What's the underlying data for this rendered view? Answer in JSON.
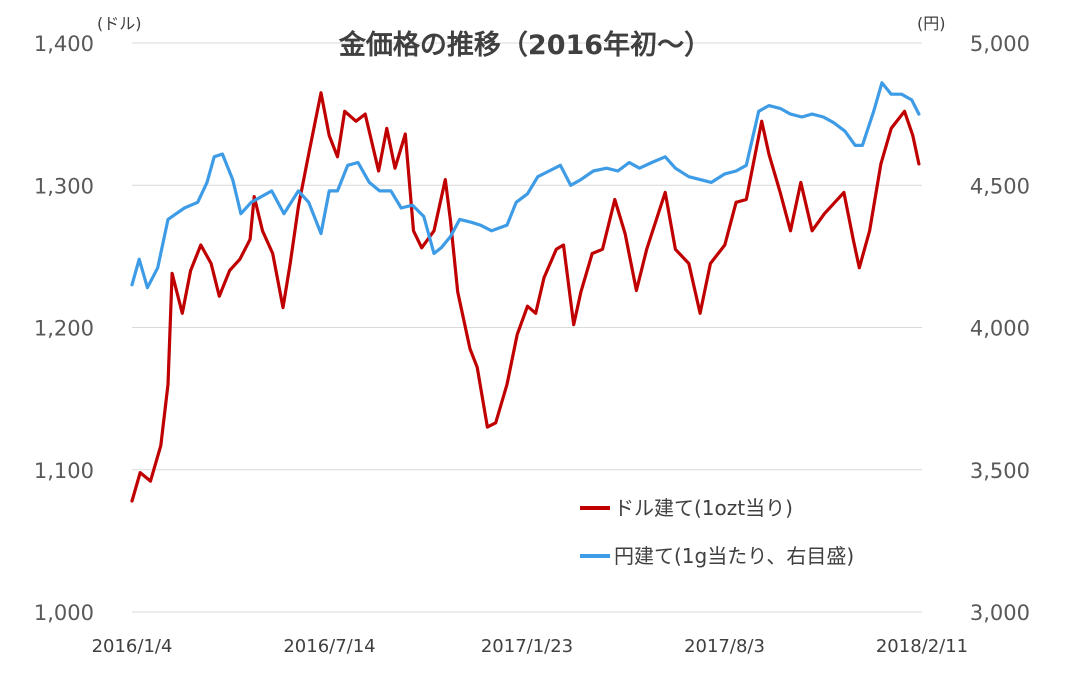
{
  "chart_data": {
    "type": "line",
    "title": "金価格の推移（2016年初～）",
    "y_left_unit": "(ドル)",
    "y_right_unit": "(円)",
    "y_left_range": [
      1000,
      1400
    ],
    "y_right_range": [
      3000,
      5000
    ],
    "y_left_ticks": [
      "1,000",
      "1,100",
      "1,200",
      "1,300",
      "1,400"
    ],
    "y_right_ticks": [
      "3,000",
      "3,500",
      "4,000",
      "4,500",
      "5,000"
    ],
    "x_range": [
      "2016-01-04",
      "2018-02-11"
    ],
    "x_ticks": [
      "2016/1/4",
      "2016/7/14",
      "2017/1/23",
      "2017/8/3",
      "2018/2/11"
    ],
    "grid": "horizontal",
    "legend_position": "bottom-right",
    "series": [
      {
        "name": "ドル建て(1ozt当り)",
        "axis": "left",
        "color": "#c00000",
        "points": [
          [
            "2016-01-04",
            1078
          ],
          [
            "2016-01-12",
            1098
          ],
          [
            "2016-01-22",
            1092
          ],
          [
            "2016-02-01",
            1117
          ],
          [
            "2016-02-08",
            1160
          ],
          [
            "2016-02-12",
            1238
          ],
          [
            "2016-02-22",
            1210
          ],
          [
            "2016-03-01",
            1240
          ],
          [
            "2016-03-11",
            1258
          ],
          [
            "2016-03-21",
            1245
          ],
          [
            "2016-03-29",
            1222
          ],
          [
            "2016-04-08",
            1240
          ],
          [
            "2016-04-18",
            1248
          ],
          [
            "2016-04-28",
            1262
          ],
          [
            "2016-05-02",
            1292
          ],
          [
            "2016-05-10",
            1268
          ],
          [
            "2016-05-20",
            1252
          ],
          [
            "2016-05-30",
            1214
          ],
          [
            "2016-06-06",
            1245
          ],
          [
            "2016-06-14",
            1285
          ],
          [
            "2016-06-24",
            1322
          ],
          [
            "2016-07-06",
            1365
          ],
          [
            "2016-07-14",
            1335
          ],
          [
            "2016-07-22",
            1320
          ],
          [
            "2016-07-29",
            1352
          ],
          [
            "2016-08-09",
            1345
          ],
          [
            "2016-08-18",
            1350
          ],
          [
            "2016-08-31",
            1310
          ],
          [
            "2016-09-08",
            1340
          ],
          [
            "2016-09-16",
            1312
          ],
          [
            "2016-09-26",
            1336
          ],
          [
            "2016-10-04",
            1268
          ],
          [
            "2016-10-12",
            1256
          ],
          [
            "2016-10-24",
            1268
          ],
          [
            "2016-11-04",
            1304
          ],
          [
            "2016-11-09",
            1275
          ],
          [
            "2016-11-16",
            1225
          ],
          [
            "2016-11-28",
            1185
          ],
          [
            "2016-12-05",
            1172
          ],
          [
            "2016-12-15",
            1130
          ],
          [
            "2016-12-23",
            1133
          ],
          [
            "2017-01-03",
            1160
          ],
          [
            "2017-01-13",
            1195
          ],
          [
            "2017-01-23",
            1215
          ],
          [
            "2017-01-31",
            1210
          ],
          [
            "2017-02-08",
            1235
          ],
          [
            "2017-02-20",
            1255
          ],
          [
            "2017-02-27",
            1258
          ],
          [
            "2017-03-09",
            1202
          ],
          [
            "2017-03-16",
            1225
          ],
          [
            "2017-03-27",
            1252
          ],
          [
            "2017-04-06",
            1255
          ],
          [
            "2017-04-18",
            1290
          ],
          [
            "2017-04-28",
            1266
          ],
          [
            "2017-05-09",
            1226
          ],
          [
            "2017-05-19",
            1255
          ],
          [
            "2017-06-06",
            1295
          ],
          [
            "2017-06-16",
            1255
          ],
          [
            "2017-06-29",
            1245
          ],
          [
            "2017-07-10",
            1210
          ],
          [
            "2017-07-20",
            1245
          ],
          [
            "2017-08-03",
            1258
          ],
          [
            "2017-08-14",
            1288
          ],
          [
            "2017-08-24",
            1290
          ],
          [
            "2017-09-08",
            1345
          ],
          [
            "2017-09-15",
            1322
          ],
          [
            "2017-09-26",
            1295
          ],
          [
            "2017-10-06",
            1268
          ],
          [
            "2017-10-16",
            1302
          ],
          [
            "2017-10-27",
            1268
          ],
          [
            "2017-11-08",
            1280
          ],
          [
            "2017-11-27",
            1295
          ],
          [
            "2017-12-06",
            1262
          ],
          [
            "2017-12-12",
            1242
          ],
          [
            "2017-12-22",
            1268
          ],
          [
            "2018-01-02",
            1315
          ],
          [
            "2018-01-12",
            1340
          ],
          [
            "2018-01-25",
            1352
          ],
          [
            "2018-02-02",
            1335
          ],
          [
            "2018-02-08",
            1315
          ]
        ]
      },
      {
        "name": "円建て(1g当たり、右目盛)",
        "axis": "right",
        "color": "#3e9be6",
        "points": [
          [
            "2016-01-04",
            4150
          ],
          [
            "2016-01-11",
            4240
          ],
          [
            "2016-01-19",
            4140
          ],
          [
            "2016-01-29",
            4210
          ],
          [
            "2016-02-08",
            4380
          ],
          [
            "2016-02-16",
            4400
          ],
          [
            "2016-02-24",
            4420
          ],
          [
            "2016-03-08",
            4440
          ],
          [
            "2016-03-17",
            4510
          ],
          [
            "2016-03-24",
            4600
          ],
          [
            "2016-04-01",
            4610
          ],
          [
            "2016-04-11",
            4520
          ],
          [
            "2016-04-19",
            4400
          ],
          [
            "2016-04-29",
            4440
          ],
          [
            "2016-05-09",
            4460
          ],
          [
            "2016-05-19",
            4480
          ],
          [
            "2016-05-31",
            4400
          ],
          [
            "2016-06-14",
            4480
          ],
          [
            "2016-06-24",
            4440
          ],
          [
            "2016-07-06",
            4330
          ],
          [
            "2016-07-14",
            4480
          ],
          [
            "2016-07-22",
            4480
          ],
          [
            "2016-08-01",
            4570
          ],
          [
            "2016-08-11",
            4580
          ],
          [
            "2016-08-22",
            4510
          ],
          [
            "2016-09-01",
            4480
          ],
          [
            "2016-09-12",
            4480
          ],
          [
            "2016-09-22",
            4420
          ],
          [
            "2016-10-03",
            4430
          ],
          [
            "2016-10-14",
            4390
          ],
          [
            "2016-10-24",
            4260
          ],
          [
            "2016-10-31",
            4280
          ],
          [
            "2016-11-09",
            4320
          ],
          [
            "2016-11-18",
            4380
          ],
          [
            "2016-11-29",
            4370
          ],
          [
            "2016-12-08",
            4360
          ],
          [
            "2016-12-19",
            4340
          ],
          [
            "2017-01-03",
            4360
          ],
          [
            "2017-01-12",
            4440
          ],
          [
            "2017-01-23",
            4470
          ],
          [
            "2017-02-02",
            4530
          ],
          [
            "2017-02-13",
            4550
          ],
          [
            "2017-02-24",
            4570
          ],
          [
            "2017-03-06",
            4500
          ],
          [
            "2017-03-16",
            4520
          ],
          [
            "2017-03-28",
            4550
          ],
          [
            "2017-04-10",
            4560
          ],
          [
            "2017-04-21",
            4550
          ],
          [
            "2017-05-02",
            4580
          ],
          [
            "2017-05-12",
            4560
          ],
          [
            "2017-05-24",
            4580
          ],
          [
            "2017-06-06",
            4600
          ],
          [
            "2017-06-16",
            4560
          ],
          [
            "2017-06-29",
            4530
          ],
          [
            "2017-07-10",
            4520
          ],
          [
            "2017-07-21",
            4510
          ],
          [
            "2017-08-03",
            4540
          ],
          [
            "2017-08-14",
            4550
          ],
          [
            "2017-08-24",
            4570
          ],
          [
            "2017-09-05",
            4760
          ],
          [
            "2017-09-15",
            4780
          ],
          [
            "2017-09-26",
            4770
          ],
          [
            "2017-10-06",
            4750
          ],
          [
            "2017-10-17",
            4740
          ],
          [
            "2017-10-27",
            4750
          ],
          [
            "2017-11-07",
            4740
          ],
          [
            "2017-11-17",
            4720
          ],
          [
            "2017-11-28",
            4690
          ],
          [
            "2017-12-08",
            4640
          ],
          [
            "2017-12-15",
            4640
          ],
          [
            "2017-12-26",
            4760
          ],
          [
            "2018-01-03",
            4860
          ],
          [
            "2018-01-12",
            4820
          ],
          [
            "2018-01-22",
            4820
          ],
          [
            "2018-02-01",
            4800
          ],
          [
            "2018-02-08",
            4750
          ]
        ]
      }
    ]
  }
}
